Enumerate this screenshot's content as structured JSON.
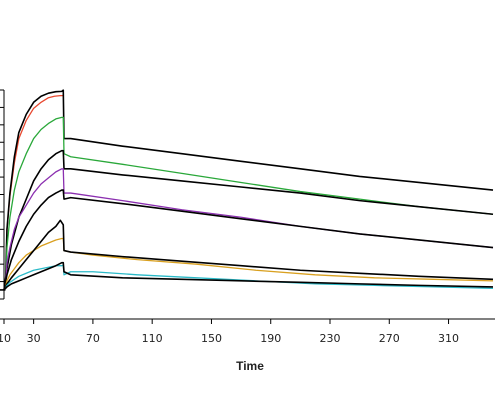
{
  "chart_data": {
    "type": "line",
    "title": "",
    "xlabel": "Time",
    "ylabel": "",
    "x_ticks": [
      10,
      30,
      70,
      110,
      150,
      190,
      230,
      270,
      310
    ],
    "x_tick_labels": [
      "10",
      "30",
      "70",
      "110",
      "150",
      "190",
      "230",
      "270",
      "310"
    ],
    "xlim": [
      10,
      340
    ],
    "ylim": [
      -3,
      72
    ],
    "grid": false,
    "legend": "none",
    "series": [
      {
        "color": "#e8482f",
        "points": [
          [
            10,
            0
          ],
          [
            11,
            1
          ],
          [
            12,
            20
          ],
          [
            14,
            31
          ],
          [
            17,
            42
          ],
          [
            20,
            50
          ],
          [
            25,
            56
          ],
          [
            30,
            60
          ],
          [
            35,
            62
          ],
          [
            40,
            63.5
          ],
          [
            44,
            64
          ],
          [
            48,
            64.2
          ],
          [
            50,
            64.2
          ]
        ]
      },
      {
        "color": "#000000",
        "points": [
          [
            10,
            0
          ],
          [
            11,
            1
          ],
          [
            12,
            20
          ],
          [
            14,
            32
          ],
          [
            17,
            44
          ],
          [
            20,
            52
          ],
          [
            25,
            58
          ],
          [
            30,
            62
          ],
          [
            35,
            64
          ],
          [
            40,
            65
          ],
          [
            45,
            65.5
          ],
          [
            49,
            65.6
          ],
          [
            50,
            66
          ],
          [
            50.5,
            50
          ],
          [
            55,
            50
          ],
          [
            90,
            47.5
          ],
          [
            130,
            45
          ],
          [
            170,
            42.5
          ],
          [
            210,
            40
          ],
          [
            250,
            37.5
          ],
          [
            290,
            35.5
          ],
          [
            340,
            33
          ]
        ]
      },
      {
        "color": "#2aa83a",
        "points": [
          [
            10,
            0
          ],
          [
            11,
            1
          ],
          [
            12,
            14
          ],
          [
            14,
            24
          ],
          [
            17,
            33
          ],
          [
            20,
            39
          ],
          [
            25,
            45
          ],
          [
            30,
            50
          ],
          [
            35,
            53
          ],
          [
            40,
            55
          ],
          [
            45,
            56.5
          ],
          [
            49,
            57
          ],
          [
            50,
            57
          ],
          [
            50.5,
            45
          ],
          [
            55,
            44
          ],
          [
            90,
            41.5
          ],
          [
            130,
            38.5
          ],
          [
            170,
            35.5
          ],
          [
            210,
            32.5
          ],
          [
            250,
            30
          ],
          [
            290,
            27.5
          ],
          [
            340,
            25
          ]
        ]
      },
      {
        "color": "#000000",
        "points": [
          [
            10,
            0
          ],
          [
            12,
            7
          ],
          [
            15,
            15
          ],
          [
            20,
            24
          ],
          [
            25,
            30
          ],
          [
            30,
            36
          ],
          [
            35,
            40
          ],
          [
            40,
            43
          ],
          [
            45,
            45
          ],
          [
            49,
            46
          ],
          [
            50,
            46
          ],
          [
            50.5,
            40
          ],
          [
            55,
            40
          ],
          [
            90,
            38
          ],
          [
            130,
            36
          ],
          [
            170,
            34
          ],
          [
            210,
            32
          ],
          [
            250,
            29.5
          ],
          [
            290,
            27.5
          ],
          [
            340,
            25
          ]
        ]
      },
      {
        "color": "#8b2fb0",
        "points": [
          [
            10,
            0
          ],
          [
            11,
            1
          ],
          [
            12,
            9
          ],
          [
            14,
            14
          ],
          [
            17,
            20
          ],
          [
            20,
            24
          ],
          [
            25,
            28
          ],
          [
            30,
            32
          ],
          [
            35,
            35
          ],
          [
            40,
            37
          ],
          [
            45,
            39
          ],
          [
            49,
            40
          ],
          [
            50,
            40
          ],
          [
            50.5,
            32
          ],
          [
            55,
            32
          ],
          [
            90,
            29.5
          ],
          [
            130,
            26.5
          ],
          [
            170,
            24
          ],
          [
            210,
            21
          ],
          [
            250,
            18.5
          ],
          [
            290,
            16.5
          ],
          [
            340,
            14
          ]
        ]
      },
      {
        "color": "#000000",
        "points": [
          [
            10,
            0
          ],
          [
            12,
            5
          ],
          [
            15,
            10
          ],
          [
            20,
            16
          ],
          [
            25,
            21
          ],
          [
            30,
            25
          ],
          [
            35,
            28
          ],
          [
            40,
            30.5
          ],
          [
            45,
            32
          ],
          [
            49,
            33
          ],
          [
            50,
            33
          ],
          [
            50.5,
            30
          ],
          [
            55,
            30.5
          ],
          [
            90,
            28.5
          ],
          [
            130,
            26
          ],
          [
            170,
            23.5
          ],
          [
            210,
            21
          ],
          [
            250,
            18.5
          ],
          [
            290,
            16.5
          ],
          [
            340,
            14
          ]
        ]
      },
      {
        "color": "#d9a020",
        "points": [
          [
            10,
            0
          ],
          [
            11,
            1
          ],
          [
            12,
            3
          ],
          [
            14,
            5
          ],
          [
            17,
            7
          ],
          [
            20,
            9
          ],
          [
            25,
            11.5
          ],
          [
            30,
            13
          ],
          [
            35,
            14.5
          ],
          [
            40,
            15.5
          ],
          [
            45,
            16.5
          ],
          [
            49,
            17
          ],
          [
            50,
            17
          ],
          [
            50.5,
            13
          ],
          [
            55,
            12.5
          ],
          [
            70,
            11.5
          ],
          [
            100,
            10
          ],
          [
            140,
            8.5
          ],
          [
            180,
            6.5
          ],
          [
            220,
            5
          ],
          [
            260,
            4
          ],
          [
            300,
            3.5
          ],
          [
            340,
            3
          ]
        ]
      },
      {
        "color": "#000000",
        "points": [
          [
            10,
            0
          ],
          [
            12,
            2
          ],
          [
            15,
            4
          ],
          [
            20,
            7
          ],
          [
            25,
            10
          ],
          [
            30,
            13
          ],
          [
            35,
            16
          ],
          [
            40,
            19
          ],
          [
            45,
            21
          ],
          [
            48,
            23
          ],
          [
            50,
            21.5
          ],
          [
            50.5,
            13
          ],
          [
            55,
            12.5
          ],
          [
            90,
            11
          ],
          [
            130,
            9.5
          ],
          [
            170,
            8
          ],
          [
            210,
            6.5
          ],
          [
            250,
            5.5
          ],
          [
            290,
            4.5
          ],
          [
            340,
            3.5
          ]
        ]
      },
      {
        "color": "#2bbac8",
        "points": [
          [
            10,
            0
          ],
          [
            11,
            0.5
          ],
          [
            12,
            1.5
          ],
          [
            14,
            2.5
          ],
          [
            17,
            3.5
          ],
          [
            20,
            4.5
          ],
          [
            25,
            5.5
          ],
          [
            30,
            6.5
          ],
          [
            35,
            7
          ],
          [
            40,
            7.5
          ],
          [
            45,
            8
          ],
          [
            49,
            8
          ],
          [
            50,
            8.2
          ],
          [
            50.5,
            5
          ],
          [
            55,
            6
          ],
          [
            70,
            6
          ],
          [
            100,
            5
          ],
          [
            140,
            4
          ],
          [
            180,
            3
          ],
          [
            220,
            2
          ],
          [
            260,
            1.5
          ],
          [
            300,
            1
          ],
          [
            340,
            0.5
          ]
        ]
      },
      {
        "color": "#000000",
        "points": [
          [
            10,
            0
          ],
          [
            12,
            1
          ],
          [
            15,
            2
          ],
          [
            20,
            3
          ],
          [
            25,
            4
          ],
          [
            30,
            5
          ],
          [
            35,
            6
          ],
          [
            40,
            7
          ],
          [
            45,
            8
          ],
          [
            49,
            9
          ],
          [
            50,
            9
          ],
          [
            50.5,
            6
          ],
          [
            55,
            5
          ],
          [
            90,
            4
          ],
          [
            130,
            3.5
          ],
          [
            170,
            3
          ],
          [
            210,
            2.5
          ],
          [
            250,
            2
          ],
          [
            290,
            1.5
          ],
          [
            340,
            1
          ]
        ]
      }
    ]
  }
}
